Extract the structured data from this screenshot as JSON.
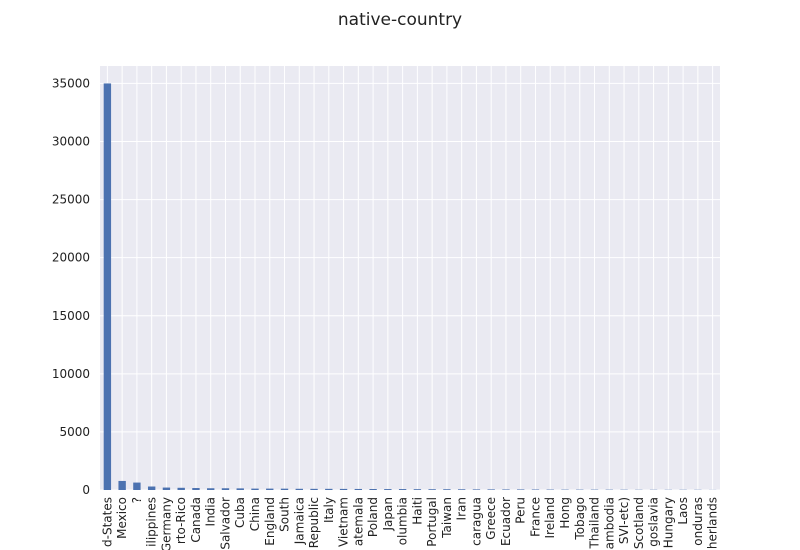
{
  "chart_data": {
    "type": "bar",
    "title": "native-country",
    "xlabel": "",
    "ylabel": "",
    "ylim": [
      0,
      36500
    ],
    "yticks": [
      0,
      5000,
      10000,
      15000,
      20000,
      25000,
      30000,
      35000
    ],
    "grid": true,
    "legend": "none",
    "colors": {
      "bar": "#4c72b0",
      "plot_bg": "#eaeaf2",
      "grid": "#ffffff"
    },
    "categories": [
      "d-States",
      "Mexico",
      "?",
      "ilippines",
      "Germany",
      "rto-Rico",
      "Canada",
      "India",
      "Salvador",
      "Cuba",
      "China",
      "England",
      "South",
      "Jamaica",
      "Republic",
      "Italy",
      "Vietnam",
      "atemala",
      "Poland",
      "Japan",
      "olumbia",
      "Haiti",
      "Portugal",
      "Taiwan",
      "Iran",
      "caragua",
      "Greece",
      "Ecuador",
      "Peru",
      "France",
      "Ireland",
      "Hong",
      "Tobago",
      "Thailand",
      "ambodia",
      "SVI-etc)",
      "Scotland",
      "goslavia",
      "Hungary",
      "Laos",
      "onduras",
      "herlands"
    ],
    "values": [
      35000,
      780,
      640,
      300,
      210,
      190,
      170,
      150,
      150,
      140,
      120,
      120,
      115,
      105,
      100,
      100,
      95,
      90,
      85,
      80,
      80,
      70,
      65,
      65,
      60,
      50,
      50,
      45,
      45,
      40,
      35,
      30,
      30,
      30,
      28,
      25,
      20,
      20,
      18,
      20,
      18,
      10
    ]
  }
}
